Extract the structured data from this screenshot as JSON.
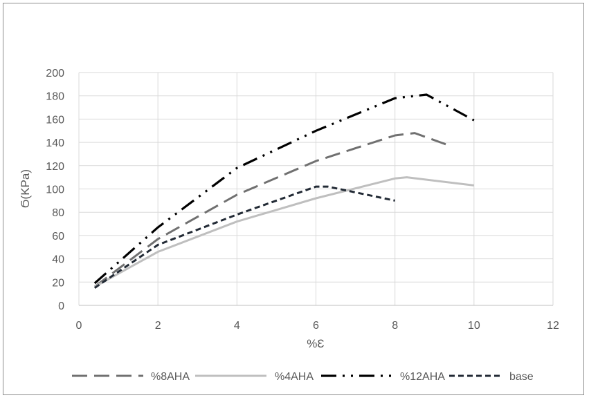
{
  "chart_data": {
    "type": "line",
    "title": "",
    "xlabel": "%Ɛ",
    "ylabel": "Ϭ(KPa)",
    "xlim": [
      0,
      12
    ],
    "ylim": [
      0,
      200
    ],
    "x_ticks": [
      0,
      2,
      4,
      6,
      8,
      10,
      12
    ],
    "y_ticks": [
      0,
      20,
      40,
      60,
      80,
      100,
      120,
      140,
      160,
      180,
      200
    ],
    "grid": true,
    "legend_position": "bottom",
    "series": [
      {
        "name": "%8AHA",
        "color": "#707070",
        "dash": "long-dash",
        "points": [
          [
            0.4,
            16
          ],
          [
            2,
            57
          ],
          [
            4,
            95
          ],
          [
            6,
            124
          ],
          [
            8,
            146
          ],
          [
            8.5,
            148
          ],
          [
            9.4,
            137
          ]
        ]
      },
      {
        "name": "%4AHA",
        "color": "#bfbfbf",
        "dash": "solid",
        "points": [
          [
            0.4,
            16
          ],
          [
            2,
            46
          ],
          [
            4,
            72
          ],
          [
            6,
            92
          ],
          [
            8,
            109
          ],
          [
            8.3,
            110
          ],
          [
            10,
            103
          ]
        ]
      },
      {
        "name": "%12AHA",
        "color": "#000000",
        "dash": "long-dash-dot-dot",
        "points": [
          [
            0.4,
            19
          ],
          [
            2,
            67
          ],
          [
            4,
            118
          ],
          [
            6,
            150
          ],
          [
            8,
            178
          ],
          [
            8.8,
            181
          ],
          [
            10,
            159
          ]
        ]
      },
      {
        "name": "base",
        "color": "#222a35",
        "dash": "short-dash",
        "points": [
          [
            0.4,
            15
          ],
          [
            2,
            52
          ],
          [
            4,
            78
          ],
          [
            6,
            102
          ],
          [
            6.3,
            102
          ],
          [
            8,
            90
          ]
        ]
      }
    ]
  }
}
